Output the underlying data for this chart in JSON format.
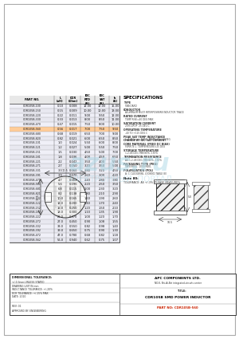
{
  "title": "CDR105B-560",
  "page_bg": "#ffffff",
  "border_color": "#000000",
  "table_rows": [
    [
      "CDR105B-100",
      "0.10",
      "0.008",
      "12.00",
      "12.00",
      "15.00"
    ],
    [
      "CDR105B-150",
      "0.15",
      "0.009",
      "10.00",
      "10.00",
      "13.00"
    ],
    [
      "CDR105B-220",
      "0.22",
      "0.011",
      "9.00",
      "9.50",
      "12.00"
    ],
    [
      "CDR105B-330",
      "0.33",
      "0.013",
      "8.00",
      "8.50",
      "11.00"
    ],
    [
      "CDR105B-470",
      "0.47",
      "0.015",
      "7.50",
      "8.00",
      "10.00"
    ],
    [
      "CDR105B-560",
      "0.56",
      "0.017",
      "7.00",
      "7.50",
      "9.50"
    ],
    [
      "CDR105B-680",
      "0.68",
      "0.019",
      "6.50",
      "7.00",
      "9.00"
    ],
    [
      "CDR105B-820",
      "0.82",
      "0.021",
      "6.00",
      "6.50",
      "8.50"
    ],
    [
      "CDR105B-101",
      "1.0",
      "0.024",
      "5.50",
      "6.00",
      "8.00"
    ],
    [
      "CDR105B-121",
      "1.2",
      "0.027",
      "5.00",
      "5.50",
      "7.50"
    ],
    [
      "CDR105B-151",
      "1.5",
      "0.030",
      "4.50",
      "5.00",
      "7.00"
    ],
    [
      "CDR105B-181",
      "1.8",
      "0.036",
      "4.00",
      "4.50",
      "6.50"
    ],
    [
      "CDR105B-221",
      "2.2",
      "0.042",
      "3.50",
      "4.00",
      "5.50"
    ],
    [
      "CDR105B-271",
      "2.7",
      "0.050",
      "3.20",
      "3.50",
      "5.00"
    ],
    [
      "CDR105B-331",
      "3.3",
      "0.060",
      "2.80",
      "3.20",
      "4.50"
    ],
    [
      "CDR105B-391",
      "3.9",
      "0.070",
      "2.60",
      "3.00",
      "4.20"
    ],
    [
      "CDR105B-471",
      "4.7",
      "0.082",
      "2.40",
      "2.80",
      "3.80"
    ],
    [
      "CDR105B-561",
      "5.6",
      "0.096",
      "2.20",
      "2.50",
      "3.50"
    ],
    [
      "CDR105B-681",
      "6.8",
      "0.115",
      "2.00",
      "2.30",
      "3.20"
    ],
    [
      "CDR105B-821",
      "8.2",
      "0.138",
      "1.80",
      "2.10",
      "2.90"
    ],
    [
      "CDR105B-102",
      "10.0",
      "0.165",
      "1.60",
      "1.90",
      "2.60"
    ],
    [
      "CDR105B-122",
      "12.0",
      "0.200",
      "1.40",
      "1.70",
      "2.40"
    ],
    [
      "CDR105B-152",
      "15.0",
      "0.250",
      "1.20",
      "1.50",
      "2.10"
    ],
    [
      "CDR105B-182",
      "18.0",
      "0.300",
      "1.10",
      "1.35",
      "1.90"
    ],
    [
      "CDR105B-222",
      "22.0",
      "0.370",
      "1.00",
      "1.20",
      "1.70"
    ],
    [
      "CDR105B-272",
      "27.0",
      "0.450",
      "0.90",
      "1.08",
      "1.55"
    ],
    [
      "CDR105B-332",
      "33.0",
      "0.550",
      "0.82",
      "0.98",
      "1.40"
    ],
    [
      "CDR105B-392",
      "39.0",
      "0.650",
      "0.75",
      "0.90",
      "1.30"
    ],
    [
      "CDR105B-472",
      "47.0",
      "0.780",
      "0.68",
      "0.82",
      "1.18"
    ],
    [
      "CDR105B-562",
      "56.0",
      "0.940",
      "0.62",
      "0.75",
      "1.07"
    ]
  ],
  "highlight_row": 5,
  "specs_title": "SPECIFICATIONS",
  "company_name": "APC COMPONENTS LTD.",
  "company_addr": "NO.8, Shi-Ai-Bai integrated-circuits center",
  "title_product": "CDR105B SMD POWER INDUCTOR",
  "watermark_text": "ЭЛЕКТРОННЫЙ  ПОРТАЛ",
  "watermark_brand": "azus.ru"
}
